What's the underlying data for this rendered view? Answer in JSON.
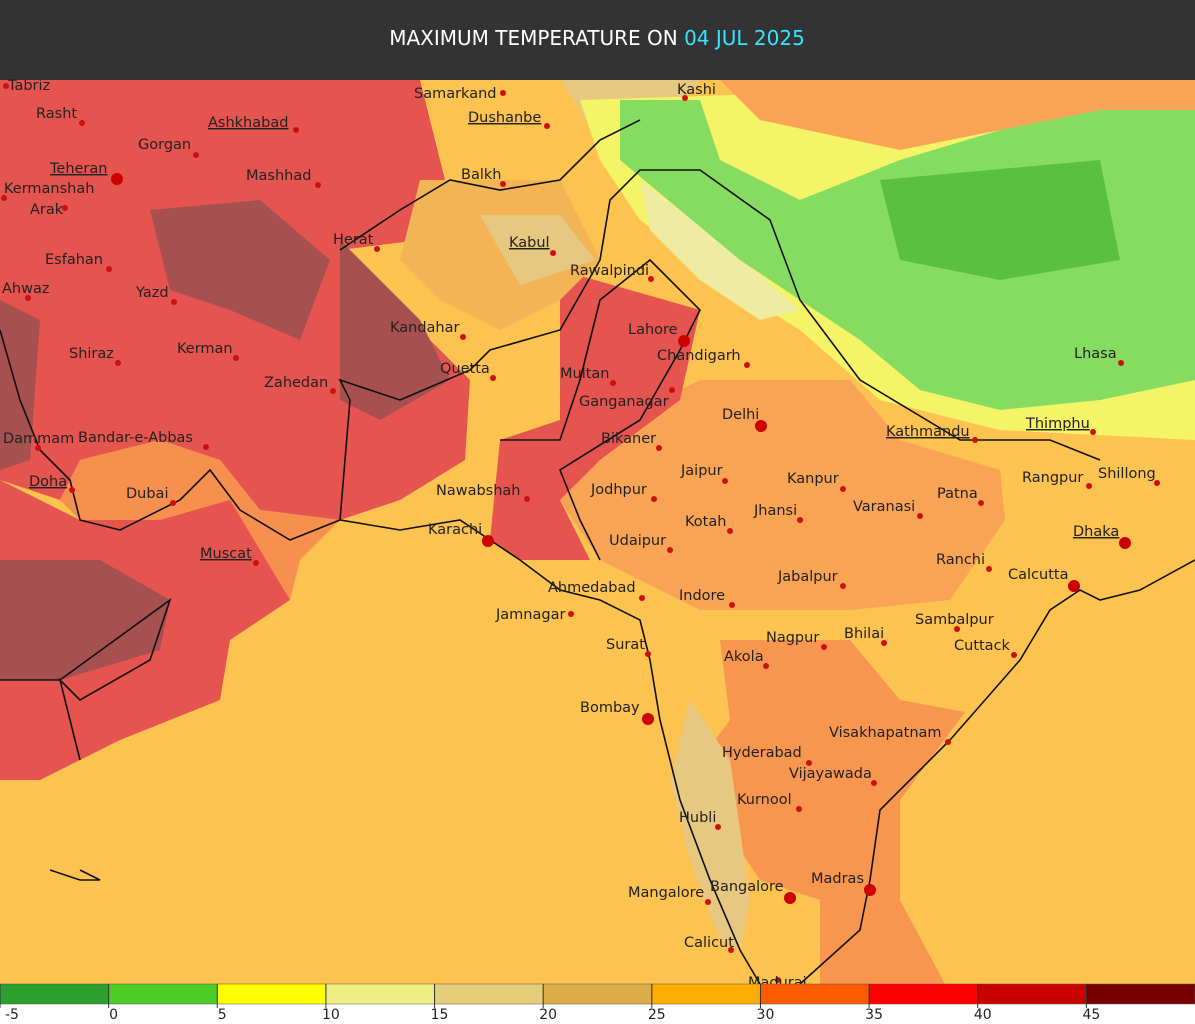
{
  "header": {
    "title": "MAXIMUM TEMPERATURE ON",
    "date": "04 JUL 2025"
  },
  "cities": [
    "Tabriz",
    "Rasht",
    "Gorgan",
    "Ashkhabad",
    "Samarkand",
    "Dushanbe",
    "Kashi",
    "Teheran",
    "Kermanshah",
    "Mashhad",
    "Balkh",
    "Arak",
    "Herat",
    "Kabul",
    "Esfahan",
    "Rawalpindi",
    "Ahwaz",
    "Yazd",
    "Kandahar",
    "Lahore",
    "Lhasa",
    "Shiraz",
    "Kerman",
    "Chandigarh",
    "Zahedan",
    "Quetta",
    "Multan",
    "Ganganagar",
    "Delhi",
    "Kathmandu",
    "Thimphu",
    "Dammam",
    "Bandar-e-Abbas",
    "Bikaner",
    "Jaipur",
    "Rangpur",
    "Shillong",
    "Kanpur",
    "Doha",
    "Nawabshah",
    "Dubai",
    "Jodhpur",
    "Patna",
    "Jhansi",
    "Varanasi",
    "Kotah",
    "Karachi",
    "Dhaka",
    "Udaipur",
    "Muscat",
    "Ranchi",
    "Calcutta",
    "Jabalpur",
    "Ahmedabad",
    "Indore",
    "Jamnagar",
    "Sambalpur",
    "Bhilai",
    "Nagpur",
    "Cuttack",
    "Surat",
    "Akola",
    "Bombay",
    "Visakhapatnam",
    "Hyderabad",
    "Vijayawada",
    "Kurnool",
    "Hubli",
    "Madras",
    "Bangalore",
    "Mangalore",
    "Calicut",
    "Madurai"
  ],
  "legend": {
    "ticks": [
      -5,
      0,
      5,
      10,
      15,
      20,
      25,
      30,
      35,
      40,
      45
    ],
    "colors": [
      "#2ca02c",
      "#4dcc26",
      "#ffff00",
      "#f0ee80",
      "#e6cd7a",
      "#dcae4a",
      "#ffad00",
      "#ff5a00",
      "#ff0000",
      "#c80000",
      "#7a0000"
    ]
  }
}
